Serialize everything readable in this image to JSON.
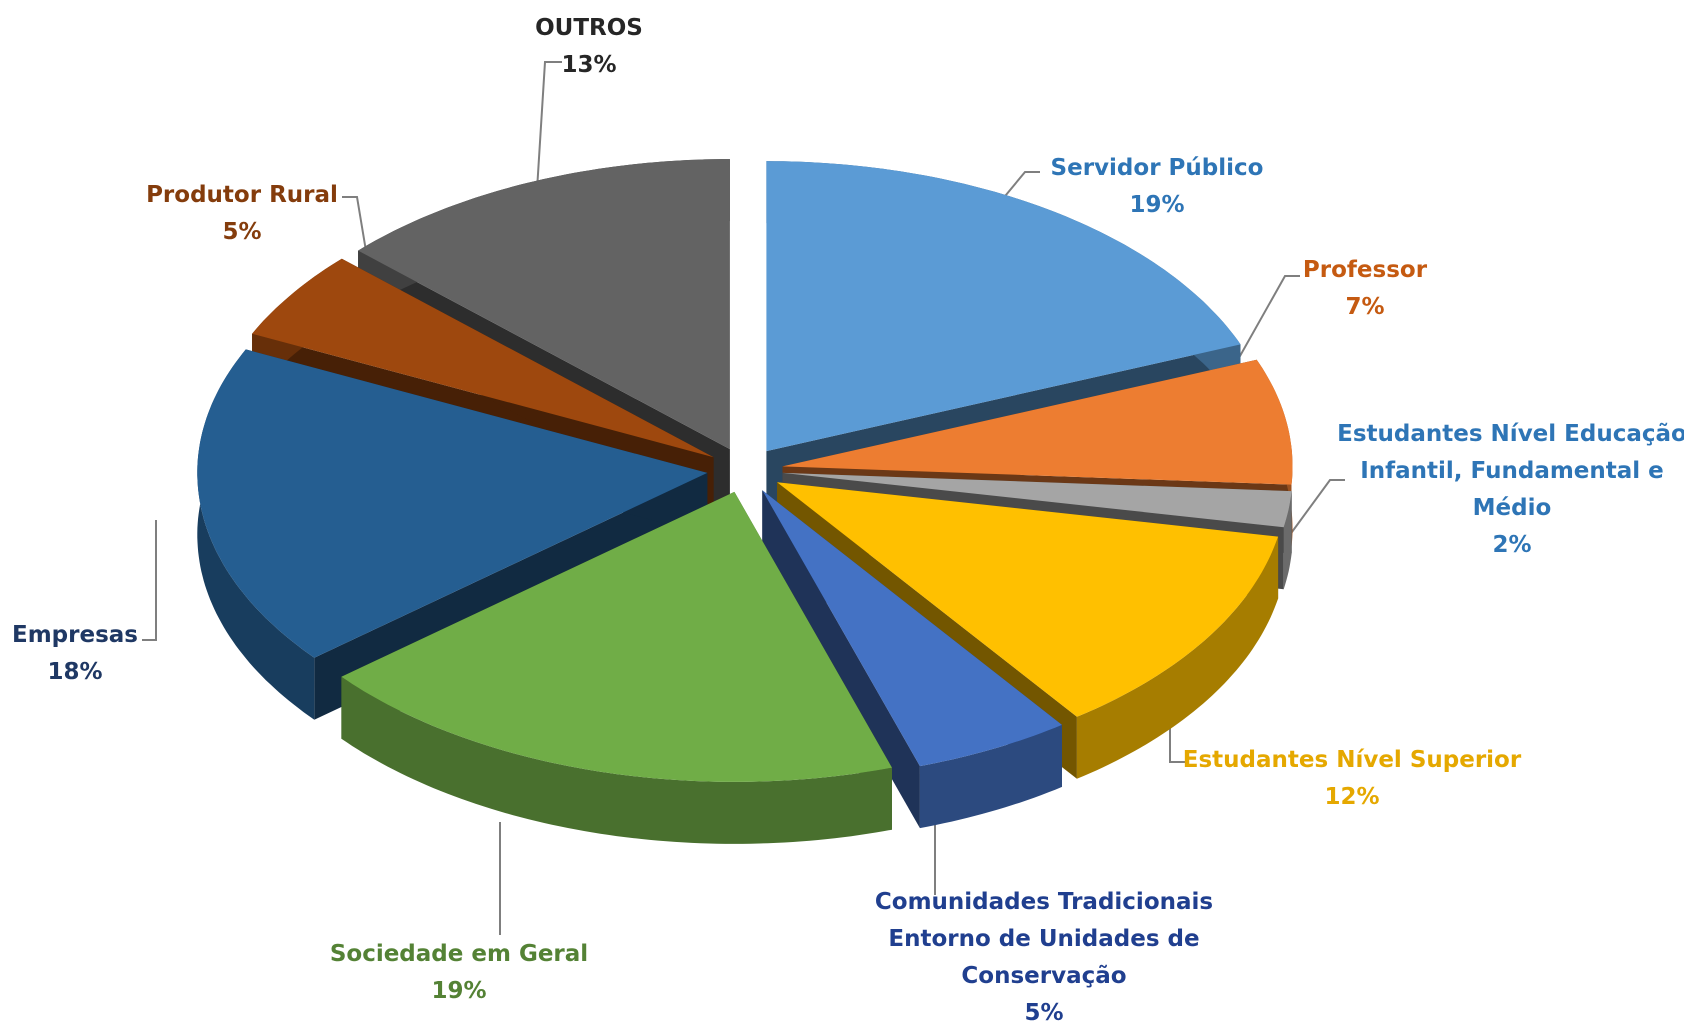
{
  "chart_data": {
    "type": "pie",
    "categories": [
      "Servidor Público",
      "Professor",
      "Estudantes Nível Educação Infantil, Fundamental e Médio",
      "Estudantes Nível Superior",
      "Comunidades Tradicionais Entorno de Unidades de Conservação",
      "Sociedade em Geral",
      "Empresas",
      "Produtor Rural",
      "OUTROS"
    ],
    "values": [
      19,
      7,
      2,
      12,
      5,
      19,
      18,
      5,
      13
    ],
    "value_labels": [
      "19%",
      "7%",
      "2%",
      "12%",
      "5%",
      "19%",
      "18%",
      "5%",
      "13%"
    ],
    "colors": [
      "#5b9bd5",
      "#ed7d31",
      "#a5a5a5",
      "#ffc000",
      "#4472c4",
      "#70ad47",
      "#255e91",
      "#9e480e",
      "#636363"
    ]
  }
}
